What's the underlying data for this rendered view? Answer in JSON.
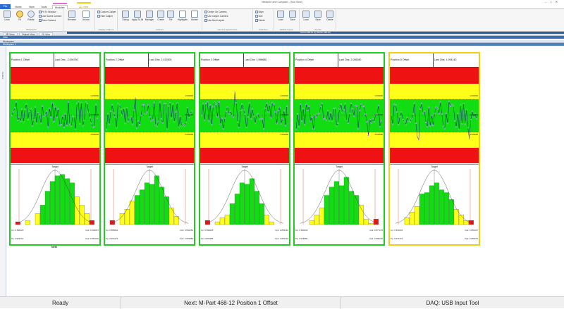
{
  "window": {
    "title": "Measure and Compare - [Tool View]"
  },
  "tabs": {
    "file": "File",
    "items": [
      "Home",
      "View",
      "Tools",
      "Modules",
      "3D View"
    ],
    "context_label": "3D"
  },
  "ribbon": {
    "groups": [
      {
        "label": "Workspace",
        "buttons": [
          "Undo",
          "Fit",
          "Rotate"
        ],
        "items": [
          "Fit To Window",
          "Use Saved Camera",
          "Save Camera"
        ]
      },
      {
        "label": "",
        "buttons": [
          "Rename",
          "Arrows"
        ],
        "items": []
      },
      {
        "label": "Display Calipers",
        "buttons": [],
        "items": [
          "Custom Caliper",
          "Hide Caliper"
        ]
      },
      {
        "label": "Calipers",
        "buttons": [
          "Dialog",
          "Apply To All",
          "Manager",
          "Create",
          "Tile",
          "Highlights",
          "Border"
        ],
        "items": []
      },
      {
        "label": "Camera Synchronize",
        "buttons": [],
        "items": [
          "Center On Camera",
          "Use Caliper Camera",
          "Use Next Layout"
        ]
      },
      {
        "label": "Selection",
        "buttons": [],
        "items": [
          "Align",
          "Size",
          "Delete"
        ]
      },
      {
        "label": "Default Layout",
        "buttons": [
          "Load",
          "Save"
        ],
        "items": []
      },
      {
        "label": "Layouts",
        "buttons": [
          "Load",
          "Save",
          "Delete"
        ],
        "items": []
      }
    ]
  },
  "doc_tabs": [
    "3D View",
    "Output View",
    "2D Wire"
  ],
  "part_bar": "M-Part 468-12 (1) (M-Part 468-12)",
  "headers": {
    "main": "View",
    "workspace": "Workspace",
    "sub": "Workspace 1"
  },
  "side_strip": "Toolbox",
  "panels": [
    {
      "position": "Position 1 Offset",
      "last_obs": "Last Obs: -2.094760",
      "ucl": "1.000000",
      "center": "0.000000",
      "lcl": "-1.000000",
      "cp": "Cp: 0.696125",
      "cpk": "Cpk: 0.694067",
      "pp": "Pp: 0.929791",
      "ppk": "Ppk: 0.987230"
    },
    {
      "position": "Position 2 Offset",
      "last_obs": "Last Obs: 2.012500",
      "ucl": "1.000000",
      "center": "0.000000",
      "lcl": "-1.000000",
      "cp": "Cp: 0.895661",
      "cpk": "Cpk: 0.841454",
      "pp": "Pp: 0.919476",
      "ppk": "Ppk: 0.875889"
    },
    {
      "position": "Position 3 Offset",
      "last_obs": "Last Obs: 1.998680",
      "ucl": "1.000000",
      "center": "0.000000",
      "lcl": "-1.000000",
      "cp": "Cp: 0.893025",
      "cpk": "Cpk: 0.863232",
      "pp": "Pp: 0.891585",
      "ppk": "Ppk: 0.879418"
    },
    {
      "position": "Position 4 Offset",
      "last_obs": "Last Obs: 2.006280",
      "ucl": "1.000000",
      "center": "0.000000",
      "lcl": "-1.000000",
      "cp": "Cp: 0.929440",
      "cpk": "Cpk: 0.877215",
      "pp": "Pp: 0.928889",
      "ppk": "Ppk: 0.896228"
    },
    {
      "position": "Position 5 Offset",
      "last_obs": "Last Obs: 1.094140",
      "ucl": "1.000000",
      "center": "0.000000",
      "lcl": "-1.000000",
      "cp": "Cp: 0.913431",
      "cpk": "Cpk: 0.854317",
      "pp": "Pp: 0.974715",
      "ppk": "Ppk: 0.864075"
    }
  ],
  "hist_target_label": "Target",
  "next_label": "Next",
  "colors": {
    "ok_border": "#1fce1f",
    "warn_border": "#f2d011",
    "red": "#ef1212",
    "yellow": "#ffff19",
    "green": "#12dd12",
    "ribbon_accent": "#2b6cd4"
  },
  "status": {
    "ready": "Ready",
    "next": "Next: M-Part 468-12 Position 1 Offset",
    "daq": "DAQ: USB Input Tool"
  }
}
